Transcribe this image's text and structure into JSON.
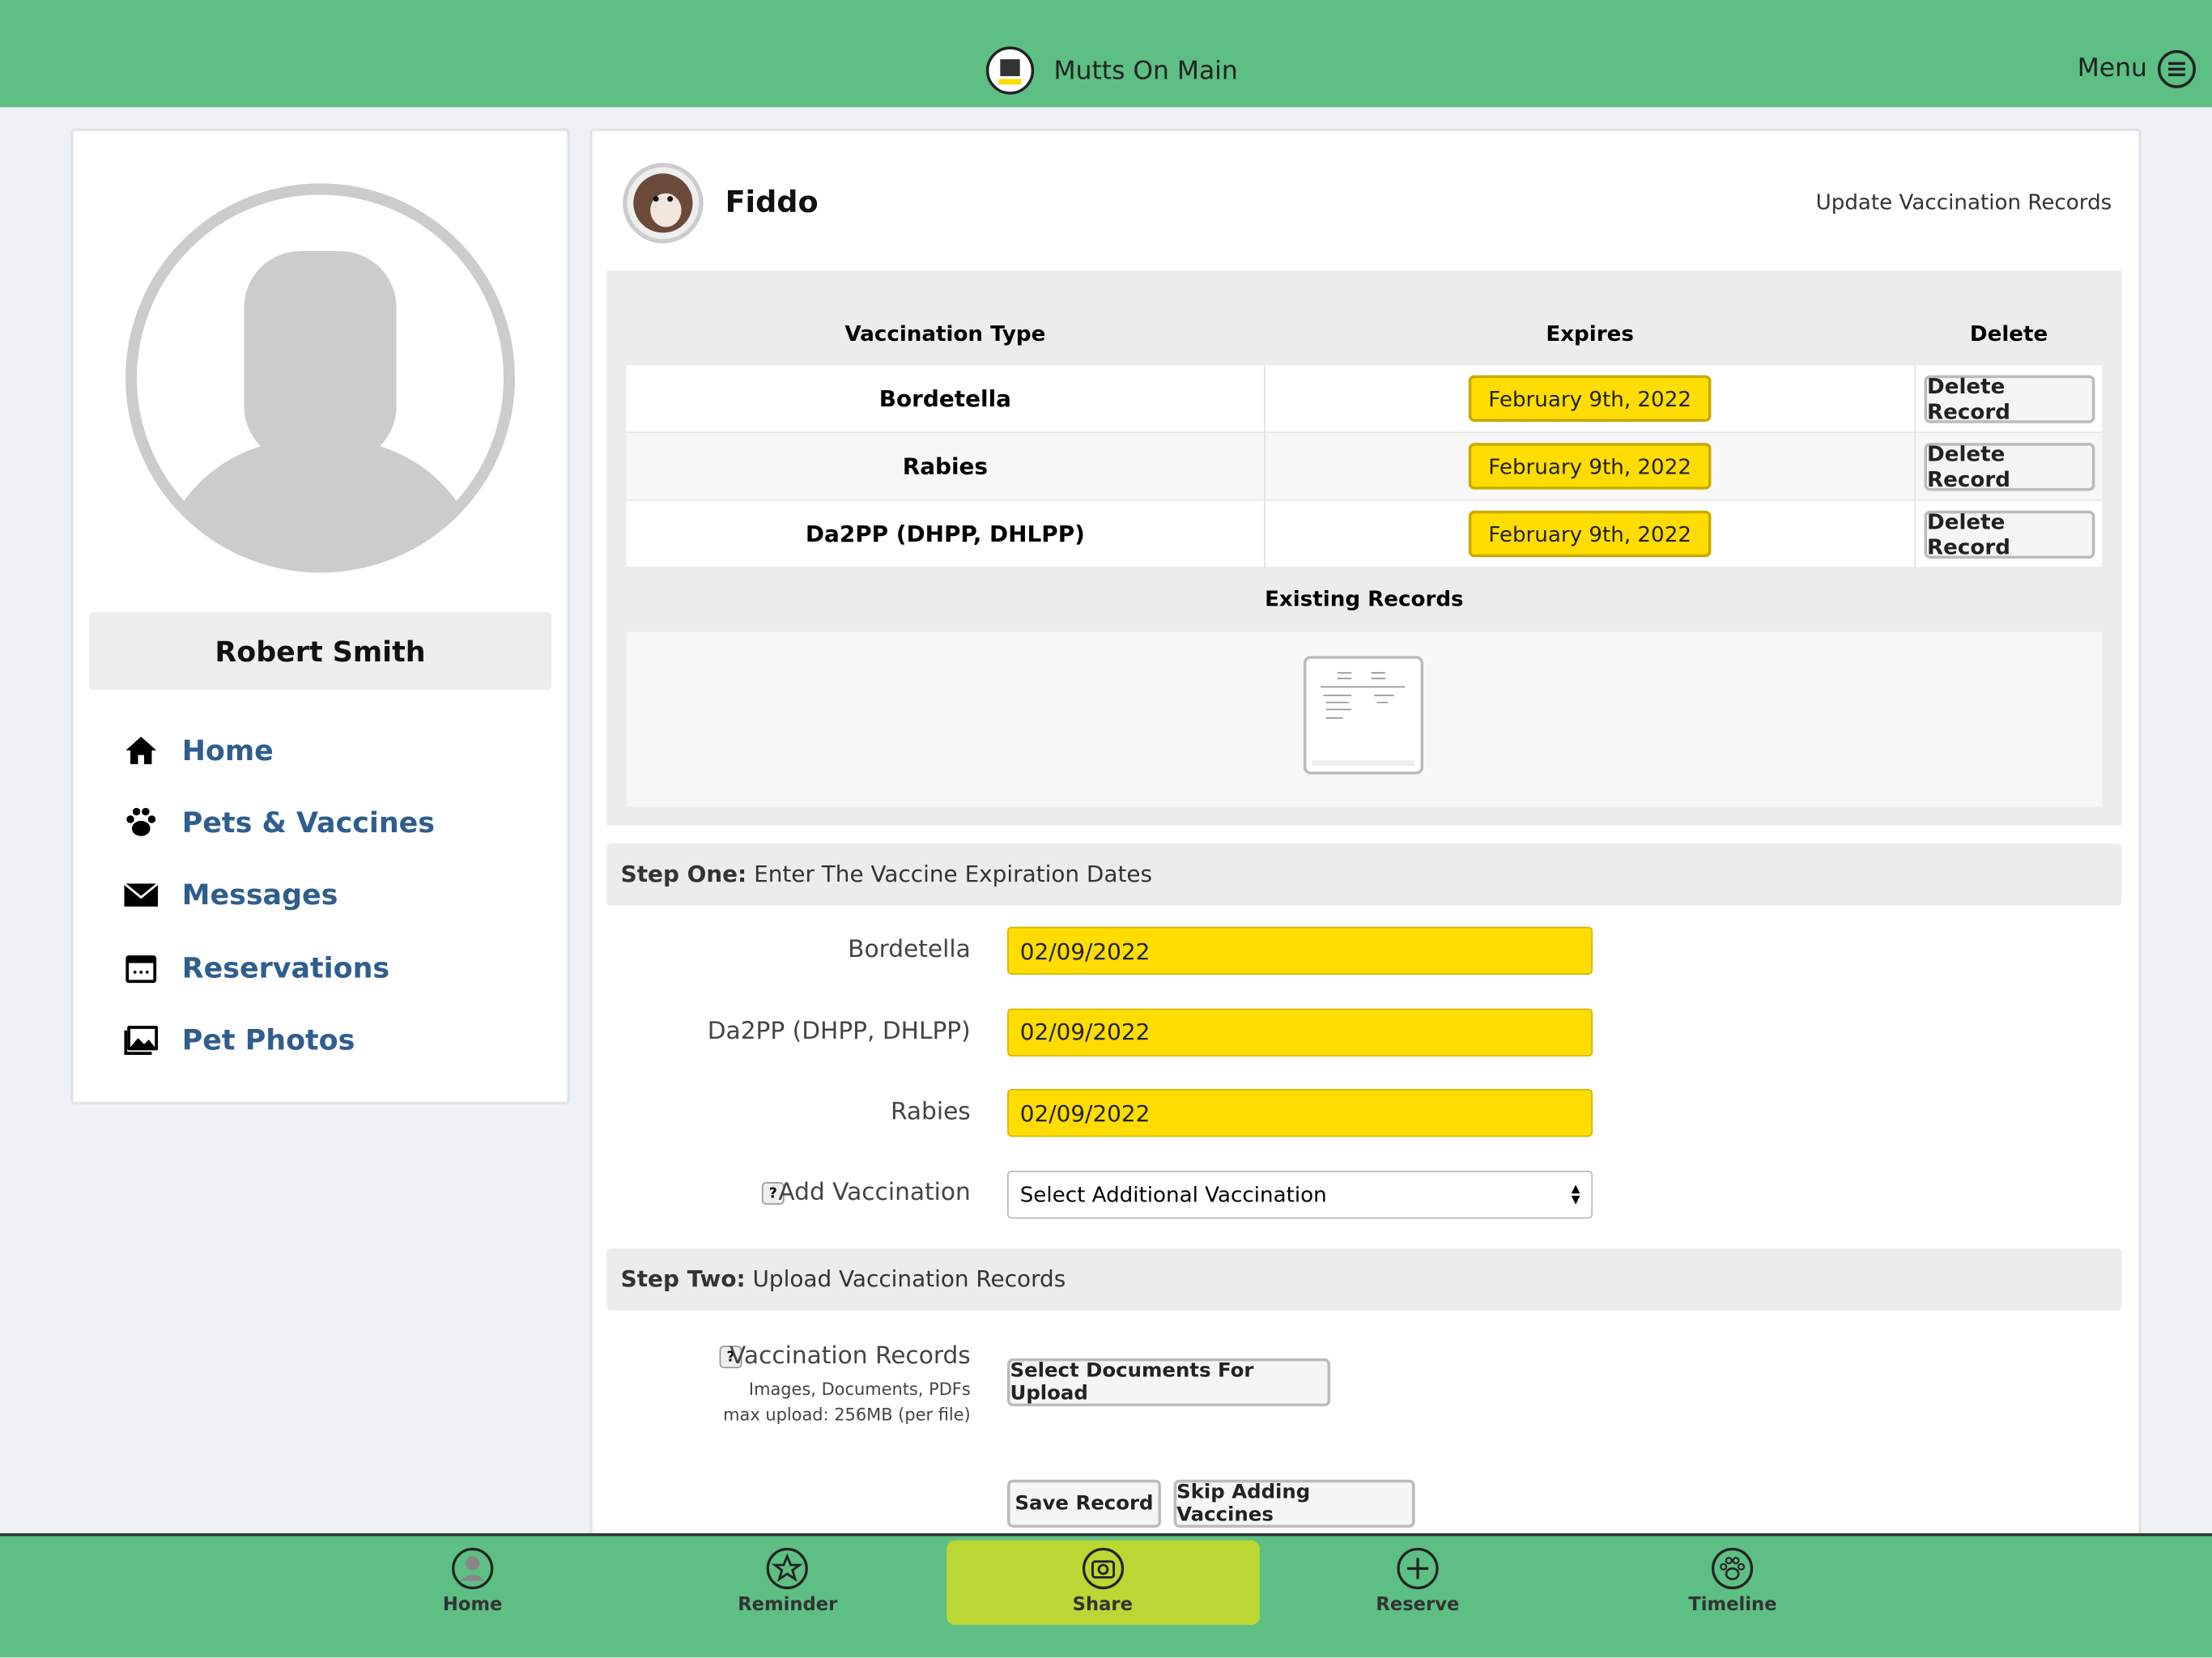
{
  "header": {
    "brand": "Mutts On Main",
    "menu": "Menu"
  },
  "profile": {
    "name": "Robert Smith",
    "nav": [
      "Home",
      "Pets & Vaccines",
      "Messages",
      "Reservations",
      "Pet Photos"
    ]
  },
  "pet": {
    "name": "Fiddo",
    "action": "Update Vaccination Records"
  },
  "table": {
    "headers": [
      "Vaccination Type",
      "Expires",
      "Delete"
    ],
    "rows": [
      [
        "Bordetella",
        "February 9th, 2022",
        "Delete Record"
      ],
      [
        "Rabies",
        "February 9th, 2022",
        "Delete Record"
      ],
      [
        "Da2PP (DHPP, DHLPP)",
        "February 9th, 2022",
        "Delete Record"
      ]
    ],
    "existing": "Existing Records"
  },
  "step_one": {
    "label": "Step One:",
    "text": "Enter The Vaccine Expiration Dates",
    "fields": [
      [
        "Bordetella",
        "02/09/2022"
      ],
      [
        "Da2PP (DHPP, DHLPP)",
        "02/09/2022"
      ],
      [
        "Rabies",
        "02/09/2022"
      ]
    ],
    "add_label": "Add Vaccination",
    "select": "Select Additional Vaccination"
  },
  "step_two": {
    "label": "Step Two:",
    "text": "Upload Vaccination Records",
    "records_label": "Vaccination Records",
    "hint1": "Images, Documents, PDFs",
    "hint2": "max upload: 256MB (per file)",
    "upload": "Select Documents For Upload"
  },
  "buttons": {
    "save": "Save Record",
    "skip": "Skip Adding Vaccines"
  },
  "bottom_nav": [
    "Home",
    "Reminder",
    "Share",
    "Reserve",
    "Timeline"
  ]
}
